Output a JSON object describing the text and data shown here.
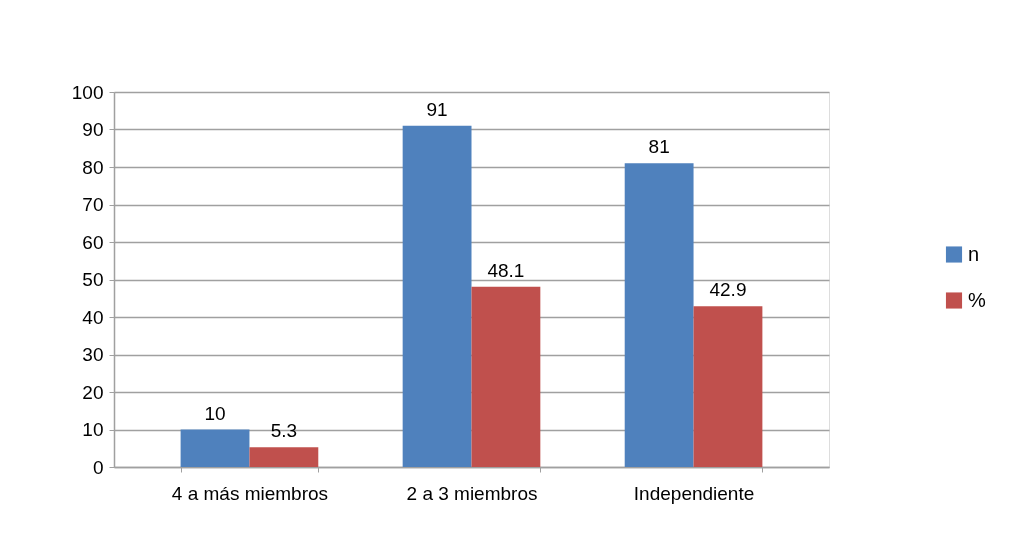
{
  "chart_data": {
    "type": "bar",
    "categories": [
      "4 a más miembros",
      "2 a 3 miembros",
      "Independiente"
    ],
    "series": [
      {
        "name": "n",
        "color": "#4f81bd",
        "values": [
          10,
          91,
          81
        ]
      },
      {
        "name": "%",
        "color": "#c0504d",
        "values": [
          5.3,
          48.1,
          42.9
        ]
      }
    ],
    "ylim": [
      0,
      100
    ],
    "yticks": [
      0,
      10,
      20,
      30,
      40,
      50,
      60,
      70,
      80,
      90,
      100
    ],
    "grid": "y",
    "legend": "right",
    "data_labels": true
  }
}
